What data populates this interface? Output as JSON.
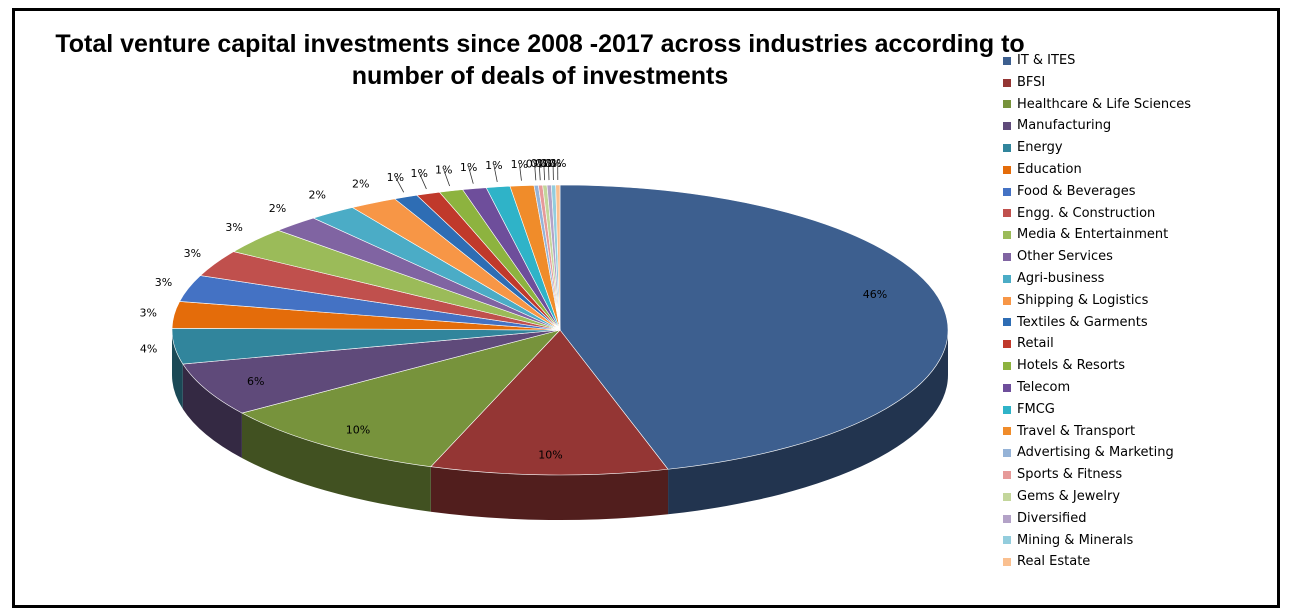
{
  "chart_data": {
    "type": "pie",
    "title": "Total venture capital investments since 2008 -2017 across industries according to number of deals of  investments",
    "legend_position": "right",
    "categories": [
      "IT & ITES",
      "BFSI",
      "Healthcare & Life Sciences",
      "Manufacturing",
      "Energy",
      "Education",
      "Food & Beverages",
      "Engg. & Construction",
      "Media & Entertainment",
      "Other Services",
      "Agri-business",
      "Shipping & Logistics",
      "Textiles & Garments",
      "Retail",
      "Hotels & Resorts",
      "Telecom",
      "FMCG",
      "Travel & Transport",
      "Advertising & Marketing",
      "Sports & Fitness",
      "Gems & Jewelry",
      "Diversified",
      "Mining & Minerals",
      "Real Estate"
    ],
    "values": [
      46,
      10,
      10,
      6,
      4,
      3,
      3,
      3,
      3,
      2,
      2,
      2,
      1,
      1,
      1,
      1,
      1,
      1,
      0,
      0,
      0,
      0,
      0,
      0
    ],
    "data_labels": [
      "46%",
      "10%",
      "10%",
      "6%",
      "4%",
      "3%",
      "3%",
      "3%",
      "3%",
      "2%",
      "2%",
      "2%",
      "1%",
      "1%",
      "1%",
      "1%",
      "1%",
      "1%",
      "0%",
      "0%",
      "0%",
      "0%",
      "0%",
      "0%"
    ],
    "colors": [
      "#3D5F8F",
      "#943634",
      "#77933C",
      "#5F4A7A",
      "#31859C",
      "#E46C0A",
      "#4472C4",
      "#C0504D",
      "#9BBB59",
      "#8064A2",
      "#4BACC6",
      "#F79646",
      "#2E6DB4",
      "#C0392B",
      "#8DB33F",
      "#6E4E9B",
      "#2FB3C8",
      "#F08C2A",
      "#95B3D7",
      "#E69A99",
      "#C3D69B",
      "#B3A2C7",
      "#93CDDD",
      "#FAC090"
    ]
  }
}
